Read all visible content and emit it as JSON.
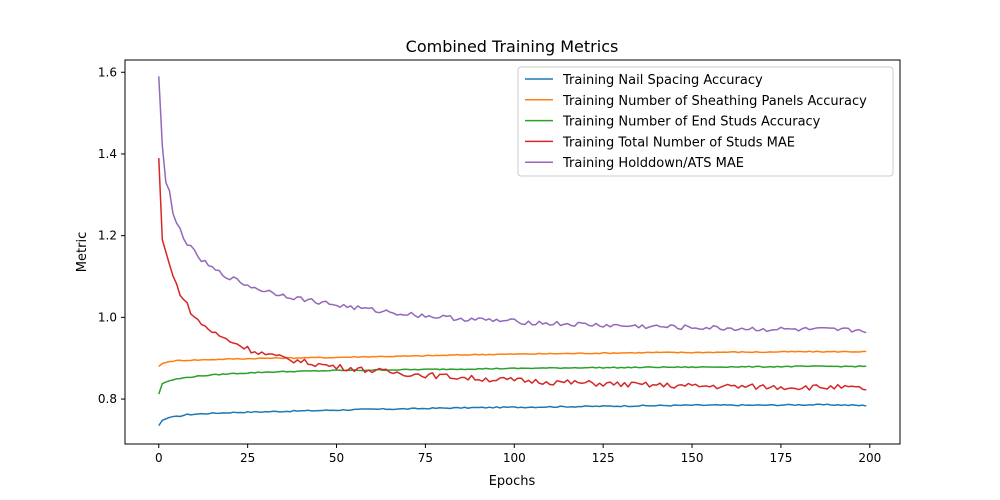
{
  "chart_data": {
    "type": "line",
    "title": "Combined Training Metrics",
    "xlabel": "Epochs",
    "ylabel": "Metric",
    "xlim": [
      -9.5,
      208.5
    ],
    "ylim": [
      0.69,
      1.63
    ],
    "xticks": [
      0,
      25,
      50,
      75,
      100,
      125,
      150,
      175,
      200
    ],
    "yticks": [
      0.8,
      1.0,
      1.2,
      1.4,
      1.6
    ],
    "ytick_labels": [
      "0.8",
      "1.0",
      "1.2",
      "1.4",
      "1.6"
    ],
    "grid": false,
    "legend_position": "top-right",
    "series": [
      {
        "name": "Training Nail Spacing Accuracy",
        "color": "#1f77b4",
        "points": [
          [
            0,
            0.735
          ],
          [
            1,
            0.748
          ],
          [
            3,
            0.755
          ],
          [
            5,
            0.757
          ],
          [
            8,
            0.762
          ],
          [
            12,
            0.764
          ],
          [
            20,
            0.767
          ],
          [
            30,
            0.769
          ],
          [
            40,
            0.771
          ],
          [
            50,
            0.773
          ],
          [
            60,
            0.775
          ],
          [
            70,
            0.776
          ],
          [
            80,
            0.778
          ],
          [
            90,
            0.779
          ],
          [
            100,
            0.78
          ],
          [
            110,
            0.781
          ],
          [
            120,
            0.782
          ],
          [
            130,
            0.783
          ],
          [
            140,
            0.784
          ],
          [
            150,
            0.785
          ],
          [
            160,
            0.785
          ],
          [
            170,
            0.785
          ],
          [
            180,
            0.786
          ],
          [
            190,
            0.786
          ],
          [
            199,
            0.784
          ]
        ]
      },
      {
        "name": "Training Number of Sheathing Panels Accuracy",
        "color": "#ff7f0e",
        "points": [
          [
            0,
            0.88
          ],
          [
            1,
            0.887
          ],
          [
            3,
            0.892
          ],
          [
            5,
            0.894
          ],
          [
            8,
            0.895
          ],
          [
            12,
            0.896
          ],
          [
            20,
            0.898
          ],
          [
            30,
            0.9
          ],
          [
            40,
            0.901
          ],
          [
            50,
            0.902
          ],
          [
            60,
            0.904
          ],
          [
            70,
            0.905
          ],
          [
            80,
            0.907
          ],
          [
            90,
            0.909
          ],
          [
            100,
            0.91
          ],
          [
            110,
            0.911
          ],
          [
            120,
            0.912
          ],
          [
            130,
            0.913
          ],
          [
            140,
            0.914
          ],
          [
            150,
            0.914
          ],
          [
            160,
            0.915
          ],
          [
            170,
            0.915
          ],
          [
            180,
            0.916
          ],
          [
            190,
            0.916
          ],
          [
            199,
            0.916
          ]
        ]
      },
      {
        "name": "Training Number of End Studs Accuracy",
        "color": "#2ca02c",
        "points": [
          [
            0,
            0.812
          ],
          [
            1,
            0.838
          ],
          [
            3,
            0.845
          ],
          [
            5,
            0.849
          ],
          [
            8,
            0.853
          ],
          [
            12,
            0.857
          ],
          [
            20,
            0.862
          ],
          [
            30,
            0.866
          ],
          [
            40,
            0.868
          ],
          [
            50,
            0.87
          ],
          [
            60,
            0.871
          ],
          [
            70,
            0.872
          ],
          [
            80,
            0.873
          ],
          [
            90,
            0.874
          ],
          [
            100,
            0.875
          ],
          [
            110,
            0.876
          ],
          [
            120,
            0.877
          ],
          [
            130,
            0.877
          ],
          [
            140,
            0.878
          ],
          [
            150,
            0.878
          ],
          [
            160,
            0.879
          ],
          [
            170,
            0.879
          ],
          [
            180,
            0.88
          ],
          [
            190,
            0.88
          ],
          [
            199,
            0.88
          ]
        ]
      },
      {
        "name": "Training Total Number of Studs MAE",
        "color": "#d62728",
        "points": [
          [
            0,
            1.39
          ],
          [
            1,
            1.19
          ],
          [
            2,
            1.16
          ],
          [
            3,
            1.13
          ],
          [
            4,
            1.1
          ],
          [
            5,
            1.08
          ],
          [
            6,
            1.06
          ],
          [
            8,
            1.03
          ],
          [
            10,
            1.0
          ],
          [
            12,
            0.985
          ],
          [
            15,
            0.965
          ],
          [
            18,
            0.95
          ],
          [
            22,
            0.935
          ],
          [
            26,
            0.92
          ],
          [
            30,
            0.91
          ],
          [
            35,
            0.9
          ],
          [
            40,
            0.892
          ],
          [
            45,
            0.885
          ],
          [
            50,
            0.879
          ],
          [
            60,
            0.87
          ],
          [
            70,
            0.862
          ],
          [
            80,
            0.856
          ],
          [
            90,
            0.85
          ],
          [
            100,
            0.846
          ],
          [
            110,
            0.842
          ],
          [
            120,
            0.839
          ],
          [
            130,
            0.836
          ],
          [
            140,
            0.834
          ],
          [
            150,
            0.832
          ],
          [
            160,
            0.831
          ],
          [
            170,
            0.83
          ],
          [
            180,
            0.829
          ],
          [
            190,
            0.829
          ],
          [
            199,
            0.825
          ]
        ]
      },
      {
        "name": "Training Holddown/ATS MAE",
        "color": "#9467bd",
        "points": [
          [
            0,
            1.59
          ],
          [
            1,
            1.42
          ],
          [
            2,
            1.33
          ],
          [
            3,
            1.31
          ],
          [
            4,
            1.25
          ],
          [
            5,
            1.23
          ],
          [
            6,
            1.215
          ],
          [
            8,
            1.18
          ],
          [
            10,
            1.16
          ],
          [
            12,
            1.14
          ],
          [
            15,
            1.12
          ],
          [
            18,
            1.105
          ],
          [
            22,
            1.09
          ],
          [
            26,
            1.075
          ],
          [
            30,
            1.065
          ],
          [
            35,
            1.055
          ],
          [
            40,
            1.045
          ],
          [
            45,
            1.038
          ],
          [
            50,
            1.03
          ],
          [
            60,
            1.018
          ],
          [
            70,
            1.008
          ],
          [
            80,
            1.0
          ],
          [
            90,
            0.994
          ],
          [
            100,
            0.99
          ],
          [
            110,
            0.985
          ],
          [
            120,
            0.982
          ],
          [
            130,
            0.979
          ],
          [
            140,
            0.977
          ],
          [
            150,
            0.975
          ],
          [
            160,
            0.973
          ],
          [
            170,
            0.971
          ],
          [
            180,
            0.97
          ],
          [
            190,
            0.969
          ],
          [
            199,
            0.968
          ]
        ]
      }
    ]
  }
}
